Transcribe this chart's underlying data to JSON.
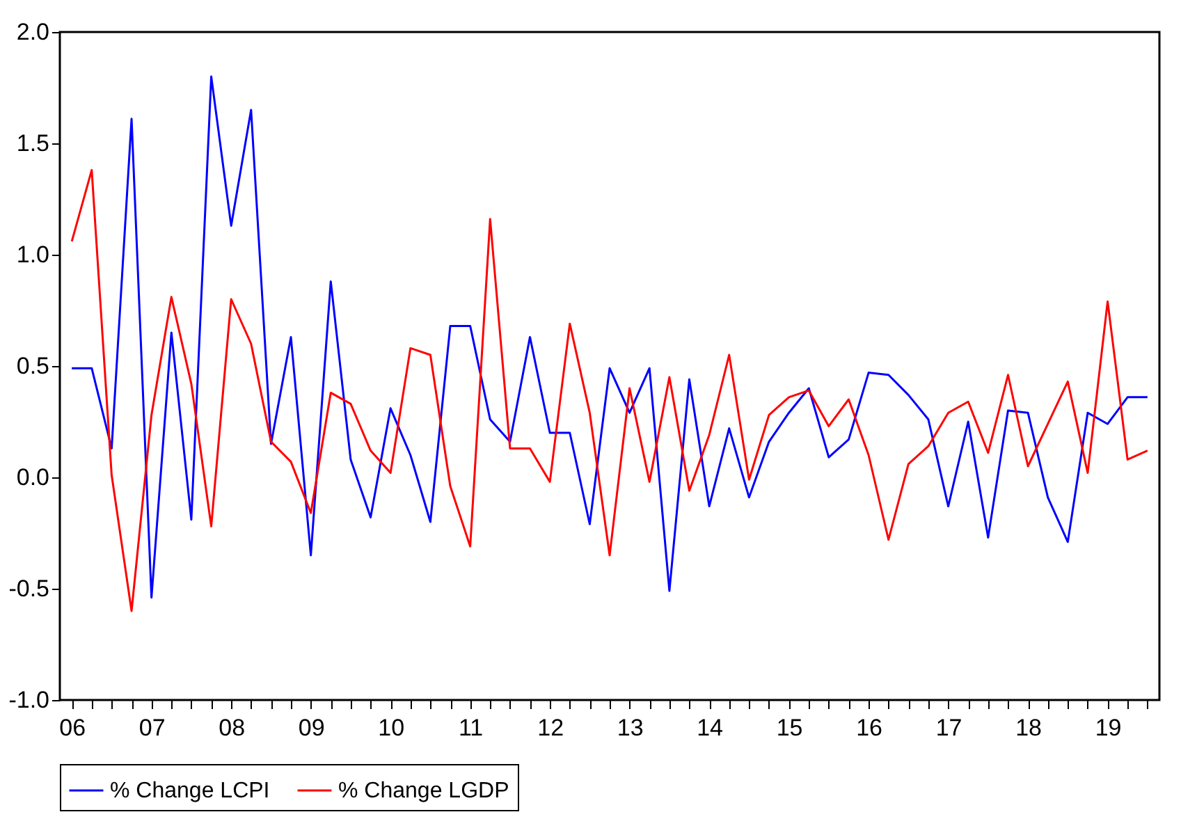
{
  "chart_data": {
    "type": "line",
    "categories": [
      "06",
      null,
      null,
      null,
      "07",
      null,
      null,
      null,
      "08",
      null,
      null,
      null,
      "09",
      null,
      null,
      null,
      "10",
      null,
      null,
      null,
      "11",
      null,
      null,
      null,
      "12",
      null,
      null,
      null,
      "13",
      null,
      null,
      null,
      "14",
      null,
      null,
      null,
      "15",
      null,
      null,
      null,
      "16",
      null,
      null,
      null,
      "17",
      null,
      null,
      null,
      "18",
      null,
      null,
      null,
      "19",
      null,
      null
    ],
    "series": [
      {
        "name": "% Change LCPI",
        "color": "#0000ff",
        "values": [
          0.49,
          0.49,
          0.13,
          1.61,
          -0.54,
          0.65,
          -0.19,
          1.8,
          1.13,
          1.65,
          0.15,
          0.63,
          -0.35,
          0.88,
          0.08,
          -0.18,
          0.31,
          0.1,
          -0.2,
          0.68,
          0.68,
          0.26,
          0.16,
          0.63,
          0.2,
          0.2,
          -0.21,
          0.49,
          0.29,
          0.49,
          -0.51,
          0.44,
          -0.13,
          0.22,
          -0.09,
          0.16,
          0.29,
          0.4,
          0.09,
          0.17,
          0.47,
          0.46,
          0.37,
          0.26,
          -0.13,
          0.25,
          -0.27,
          0.3,
          0.29,
          -0.09,
          -0.29,
          0.29,
          0.24,
          0.36,
          0.36
        ]
      },
      {
        "name": "% Change LGDP",
        "color": "#ff0000",
        "values": [
          1.06,
          1.38,
          0.01,
          -0.6,
          0.28,
          0.81,
          0.42,
          -0.22,
          0.8,
          0.6,
          0.16,
          0.07,
          -0.16,
          0.38,
          0.33,
          0.12,
          0.02,
          0.58,
          0.55,
          -0.04,
          -0.31,
          1.16,
          0.13,
          0.13,
          -0.02,
          0.69,
          0.29,
          -0.35,
          0.4,
          -0.02,
          0.45,
          -0.06,
          0.19,
          0.55,
          -0.01,
          0.28,
          0.36,
          0.39,
          0.23,
          0.35,
          0.1,
          -0.28,
          0.06,
          0.14,
          0.29,
          0.34,
          0.11,
          0.46,
          0.05,
          0.24,
          0.43,
          0.02,
          0.79,
          0.08,
          0.12
        ]
      }
    ],
    "ylim": [
      -1.0,
      2.0
    ],
    "yticks": [
      {
        "value": -1.0,
        "label": "-1.0"
      },
      {
        "value": -0.5,
        "label": "-0.5"
      },
      {
        "value": 0.0,
        "label": "0.0"
      },
      {
        "value": 0.5,
        "label": "0.5"
      },
      {
        "value": 1.0,
        "label": "1.0"
      },
      {
        "value": 1.5,
        "label": "1.5"
      },
      {
        "value": 2.0,
        "label": "2.0"
      }
    ],
    "grid": false,
    "legend": "bottom",
    "marker": "none",
    "line_style": "solid"
  }
}
